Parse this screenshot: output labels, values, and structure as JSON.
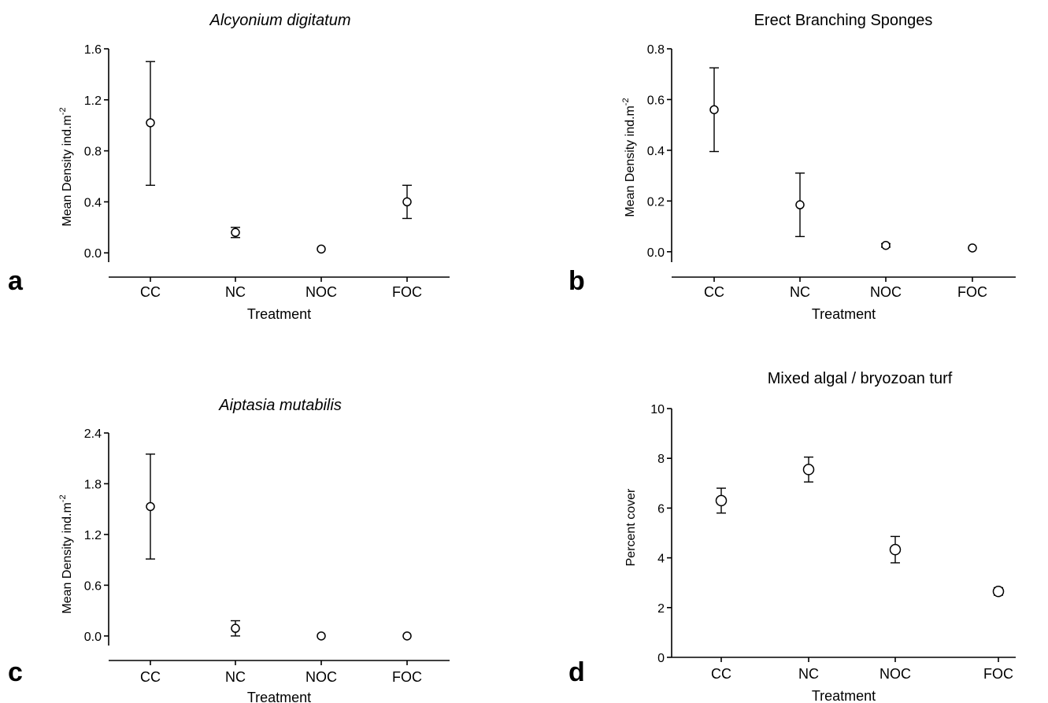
{
  "chart_data": [
    {
      "type": "scatter",
      "panel_label": "a",
      "title": "Alcyonium digitatum",
      "title_italic": true,
      "xlabel": "Treatment",
      "ylabel": "Mean Density ind.m",
      "ylabel_superscript": "-2",
      "categories": [
        "CC",
        "NC",
        "NOC",
        "FOC"
      ],
      "series": [
        {
          "values": [
            1.02,
            0.16,
            0.03,
            0.4
          ],
          "err_low": [
            0.53,
            0.12,
            0.03,
            0.27
          ],
          "err_high": [
            1.5,
            0.2,
            0.03,
            0.53
          ]
        }
      ],
      "yticks": [
        "0.0",
        "0.4",
        "0.8",
        "1.2",
        "1.6"
      ],
      "yticks_values": [
        0,
        0.4,
        0.8,
        1.2,
        1.6
      ],
      "ylim": [
        -0.19,
        1.6
      ]
    },
    {
      "type": "scatter",
      "panel_label": "b",
      "title": "Erect Branching Sponges",
      "title_italic": false,
      "xlabel": "Treatment",
      "ylabel": "Mean Density ind.m",
      "ylabel_superscript": "-2",
      "categories": [
        "CC",
        "NC",
        "NOC",
        "FOC"
      ],
      "series": [
        {
          "values": [
            0.56,
            0.185,
            0.025,
            0.015
          ],
          "err_low": [
            0.395,
            0.06,
            0.018,
            0.015
          ],
          "err_high": [
            0.725,
            0.31,
            0.032,
            0.015
          ]
        }
      ],
      "yticks": [
        "0.0",
        "0.2",
        "0.4",
        "0.6",
        "0.8"
      ],
      "yticks_values": [
        0,
        0.2,
        0.4,
        0.6,
        0.8
      ],
      "ylim": [
        -0.1,
        0.8
      ]
    },
    {
      "type": "scatter",
      "panel_label": "c",
      "title": "Aiptasia mutabilis",
      "title_italic": true,
      "xlabel": "Treatment",
      "ylabel": "Mean Density ind.m",
      "ylabel_superscript": "-2",
      "categories": [
        "CC",
        "NC",
        "NOC",
        "FOC"
      ],
      "series": [
        {
          "values": [
            1.53,
            0.09,
            0.0,
            0.0
          ],
          "err_low": [
            0.91,
            0.0,
            0.0,
            0.0
          ],
          "err_high": [
            2.15,
            0.18,
            0.0,
            0.0
          ]
        }
      ],
      "yticks": [
        "0.0",
        "0.6",
        "1.2",
        "1.8",
        "2.4"
      ],
      "yticks_values": [
        0,
        0.6,
        1.2,
        1.8,
        2.4
      ],
      "ylim": [
        -0.29,
        2.4
      ]
    },
    {
      "type": "scatter",
      "panel_label": "d",
      "title": "Mixed algal / bryozoan turf",
      "title_italic": false,
      "xlabel": "Treatment",
      "ylabel": "Percent cover",
      "ylabel_superscript": "",
      "categories": [
        "CC",
        "NC",
        "NOC",
        "FOC"
      ],
      "series": [
        {
          "values": [
            6.3,
            7.55,
            4.33,
            2.65
          ],
          "err_low": [
            5.8,
            7.05,
            3.8,
            2.5
          ],
          "err_high": [
            6.8,
            8.05,
            4.86,
            2.8
          ]
        }
      ],
      "yticks": [
        "0",
        "2",
        "4",
        "6",
        "8",
        "10"
      ],
      "yticks_values": [
        0,
        2,
        4,
        6,
        8,
        10
      ],
      "ylim": [
        0,
        10
      ]
    }
  ]
}
